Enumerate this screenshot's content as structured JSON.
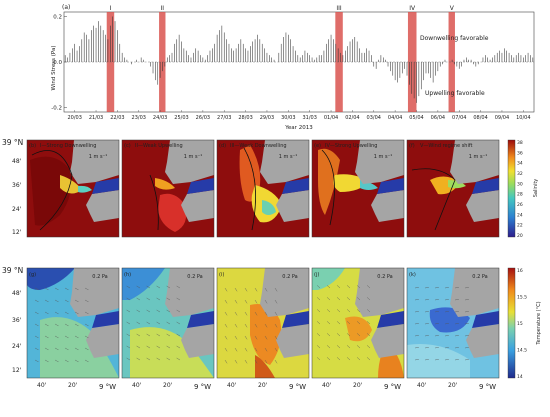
{
  "top_panel": {
    "label": "(a)",
    "ylabel": "Wind Stress (Pa)",
    "xlabel": "Year 2013",
    "note_down": "Downwelling favorable",
    "note_up": "Upwelling favorable",
    "event_labels": [
      "I",
      "II",
      "III",
      "IV",
      "V"
    ],
    "highlight_color": "#d9534f"
  },
  "salinity_row": {
    "panels": [
      {
        "label": "(b)",
        "title": "I—Strong Downwelling",
        "scale": "1 m s⁻¹"
      },
      {
        "label": "(c)",
        "title": "II—Weak Upwelling",
        "scale": "1 m s⁻¹"
      },
      {
        "label": "(d)",
        "title": "III—Weak Downwelling",
        "scale": "1 m s⁻¹"
      },
      {
        "label": "(e)",
        "title": "IV—Strong Upwelling",
        "scale": "1 m s⁻¹"
      },
      {
        "label": "(f)",
        "title": "V—Wind regime shift",
        "scale": "1 m s⁻¹"
      }
    ],
    "lat_ticks": [
      "39 °N",
      "48'",
      "36'",
      "24'",
      "12'"
    ],
    "colorbar": {
      "label": "Salinity",
      "ticks": [
        "38",
        "36",
        "34",
        "32",
        "30",
        "28",
        "26",
        "24",
        "22",
        "20"
      ]
    }
  },
  "temperature_row": {
    "panels": [
      {
        "label": "(g)",
        "scale": "0.2 Pa"
      },
      {
        "label": "(h)",
        "scale": "0.2 Pa"
      },
      {
        "label": "(i)",
        "scale": "0.2 Pa"
      },
      {
        "label": "(j)",
        "scale": "0.2 Pa"
      },
      {
        "label": "(k)",
        "scale": "0.2 Pa"
      }
    ],
    "lat_ticks": [
      "39 °N",
      "48'",
      "36'",
      "24'",
      "12'"
    ],
    "lon_ticks": [
      "40'",
      "20'",
      "9 °W"
    ],
    "colorbar": {
      "label": "Temperature (°C)",
      "ticks": [
        "16",
        "15.5",
        "15",
        "14.5",
        "14"
      ]
    }
  },
  "chart_data": {
    "type": "bar",
    "title": "",
    "xlabel": "Year 2013",
    "ylabel": "Wind Stress (Pa)",
    "ylim": [
      -0.22,
      0.22
    ],
    "yticks": [
      "0.2",
      "0.0",
      "-0.2"
    ],
    "categories": [
      "20/03",
      "21/03",
      "22/03",
      "23/03",
      "24/03",
      "25/03",
      "26/03",
      "27/03",
      "28/03",
      "29/03",
      "30/03",
      "31/03",
      "01/04",
      "02/04",
      "03/04",
      "04/04",
      "05/04",
      "06/04",
      "07/04",
      "08/04",
      "09/04",
      "10/04"
    ],
    "highlights": [
      {
        "label": "I",
        "start": 2.0,
        "end": 2.35
      },
      {
        "label": "II",
        "start": 4.45,
        "end": 4.75
      },
      {
        "label": "III",
        "start": 12.7,
        "end": 13.05
      },
      {
        "label": "IV",
        "start": 16.1,
        "end": 16.5
      },
      {
        "label": "V",
        "start": 18.0,
        "end": 18.3
      }
    ],
    "series": [
      {
        "values_per_day": [
          [
            0.03,
            0.02,
            0.04,
            0.06,
            0.08,
            0.05,
            0.07,
            0.1,
            0.13
          ],
          [
            0.12,
            0.1,
            0.14,
            0.16,
            0.15,
            0.18,
            0.16,
            0.14,
            0.12
          ],
          [
            0.1,
            0.16,
            0.2,
            0.18,
            0.14,
            0.08,
            0.04,
            0.02,
            0.01
          ],
          [
            0.0,
            -0.01,
            0.0,
            0.01,
            0.0,
            0.02,
            0.01,
            0.0,
            0.0
          ],
          [
            -0.02,
            -0.05,
            -0.08,
            -0.1,
            -0.07,
            -0.04,
            -0.02,
            0.02,
            0.03
          ],
          [
            0.04,
            0.08,
            0.1,
            0.12,
            0.09,
            0.06,
            0.05,
            0.03,
            0.02
          ],
          [
            0.04,
            0.06,
            0.05,
            0.03,
            0.02,
            0.01,
            0.03,
            0.05,
            0.06
          ],
          [
            0.08,
            0.12,
            0.14,
            0.16,
            0.13,
            0.1,
            0.08,
            0.06,
            0.05
          ],
          [
            0.06,
            0.08,
            0.1,
            0.08,
            0.06,
            0.05,
            0.07,
            0.09,
            0.1
          ],
          [
            0.12,
            0.1,
            0.08,
            0.06,
            0.04,
            0.03,
            0.02,
            0.01,
            0.0
          ],
          [
            0.04,
            0.08,
            0.11,
            0.13,
            0.12,
            0.1,
            0.07,
            0.05,
            0.03
          ],
          [
            0.02,
            0.03,
            0.05,
            0.04,
            0.03,
            0.02,
            0.01,
            0.02,
            0.03
          ],
          [
            0.03,
            0.05,
            0.08,
            0.1,
            0.12,
            0.1,
            0.08,
            0.06,
            0.04
          ],
          [
            0.03,
            0.05,
            0.07,
            0.09,
            0.1,
            0.11,
            0.09,
            0.06,
            0.04
          ],
          [
            0.04,
            0.06,
            0.05,
            0.03,
            -0.02,
            -0.03,
            0.01,
            0.03,
            0.02
          ],
          [
            0.01,
            -0.02,
            -0.04,
            -0.06,
            -0.08,
            -0.09,
            -0.07,
            -0.05,
            -0.03
          ],
          [
            -0.06,
            -0.1,
            -0.14,
            -0.16,
            -0.18,
            -0.15,
            -0.12,
            -0.08,
            -0.05
          ],
          [
            -0.05,
            -0.07,
            -0.09,
            -0.06,
            -0.04,
            -0.02,
            -0.01,
            0.01,
            0.0
          ],
          [
            0.0,
            0.01,
            -0.01,
            -0.02,
            -0.03,
            -0.02,
            0.01,
            0.02,
            0.01
          ],
          [
            0.01,
            -0.01,
            -0.02,
            -0.01,
            0.0,
            0.02,
            0.03,
            0.02,
            0.01
          ],
          [
            0.02,
            0.03,
            0.04,
            0.05,
            0.04,
            0.06,
            0.05,
            0.04,
            0.03
          ],
          [
            0.02,
            0.03,
            0.04,
            0.03,
            0.02,
            0.03,
            0.04,
            0.03,
            0.02
          ]
        ]
      }
    ]
  }
}
